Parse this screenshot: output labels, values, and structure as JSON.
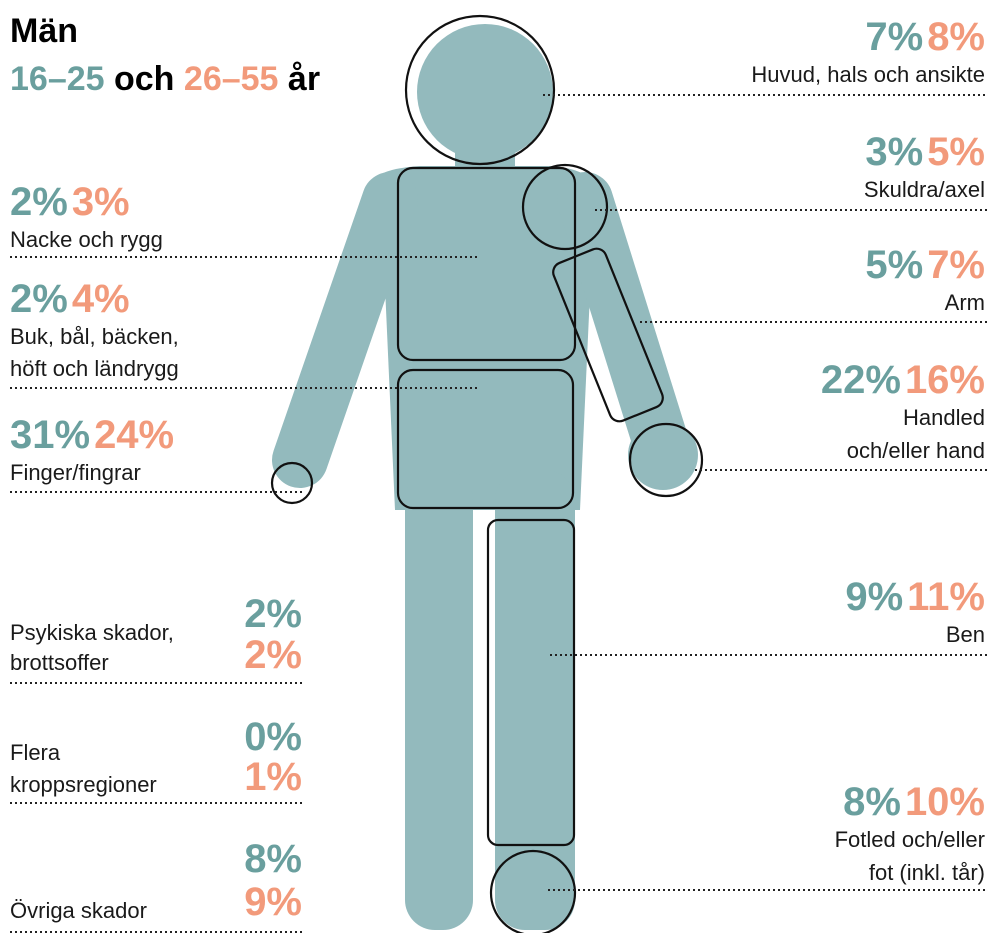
{
  "header": {
    "title": "Män",
    "age_young": "16–25",
    "and": "och",
    "age_old": "26–55",
    "unit": "år"
  },
  "right_regions": [
    {
      "label": [
        "Huvud, hals och ansikte"
      ],
      "young": "7%",
      "old": "8%"
    },
    {
      "label": [
        "Skuldra/axel"
      ],
      "young": "3%",
      "old": "5%"
    },
    {
      "label": [
        "Arm"
      ],
      "young": "5%",
      "old": "7%"
    },
    {
      "label": [
        "Handled",
        "och/eller hand"
      ],
      "young": "22%",
      "old": "16%"
    },
    {
      "label": [
        "Ben"
      ],
      "young": "9%",
      "old": "11%"
    },
    {
      "label": [
        "Fotled och/eller",
        "fot (inkl. tår)"
      ],
      "young": "8%",
      "old": "10%"
    }
  ],
  "left_regions": [
    {
      "label": [
        "Nacke och rygg"
      ],
      "young": "2%",
      "old": "3%"
    },
    {
      "label": [
        "Buk, bål, bäcken,",
        "höft och ländrygg"
      ],
      "young": "2%",
      "old": "4%"
    },
    {
      "label": [
        "Finger/fingrar"
      ],
      "young": "31%",
      "old": "24%"
    }
  ],
  "other_injuries": [
    {
      "label": [
        "Psykiska skador,",
        "brottsoffer"
      ],
      "young": "2%",
      "old": "2%"
    },
    {
      "label": [
        "Flera",
        "kroppsregioner"
      ],
      "young": "0%",
      "old": "1%"
    },
    {
      "label": [
        "Övriga skador"
      ],
      "young": "8%",
      "old": "9%"
    }
  ]
}
